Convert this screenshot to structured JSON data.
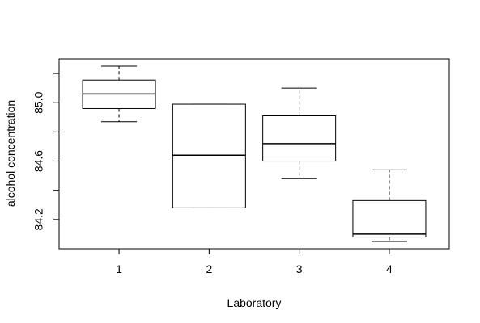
{
  "chart_data": {
    "type": "boxplot",
    "x_label": "Laboratory",
    "y_label": "alcohol concentration",
    "categories": [
      "1",
      "2",
      "3",
      "4"
    ],
    "boxes": [
      {
        "whisker_low": 84.87,
        "q1": 84.96,
        "median": 85.06,
        "q3": 85.155,
        "whisker_high": 85.25
      },
      {
        "whisker_low": 84.28,
        "q1": 84.28,
        "median": 84.64,
        "q3": 84.99,
        "whisker_high": 84.99
      },
      {
        "whisker_low": 84.48,
        "q1": 84.6,
        "median": 84.72,
        "q3": 84.91,
        "whisker_high": 85.1
      },
      {
        "whisker_low": 84.05,
        "q1": 84.08,
        "median": 84.1,
        "q3": 84.33,
        "whisker_high": 84.54
      }
    ],
    "ylim": [
      84.0,
      85.3
    ],
    "yticks": [
      {
        "value": 84.2,
        "label": "84.2"
      },
      {
        "value": 84.4,
        "label": null
      },
      {
        "value": 84.6,
        "label": "84.6"
      },
      {
        "value": 84.8,
        "label": null
      },
      {
        "value": 85.0,
        "label": "85.0"
      },
      {
        "value": 85.2,
        "label": null
      }
    ],
    "color": "#000000"
  }
}
